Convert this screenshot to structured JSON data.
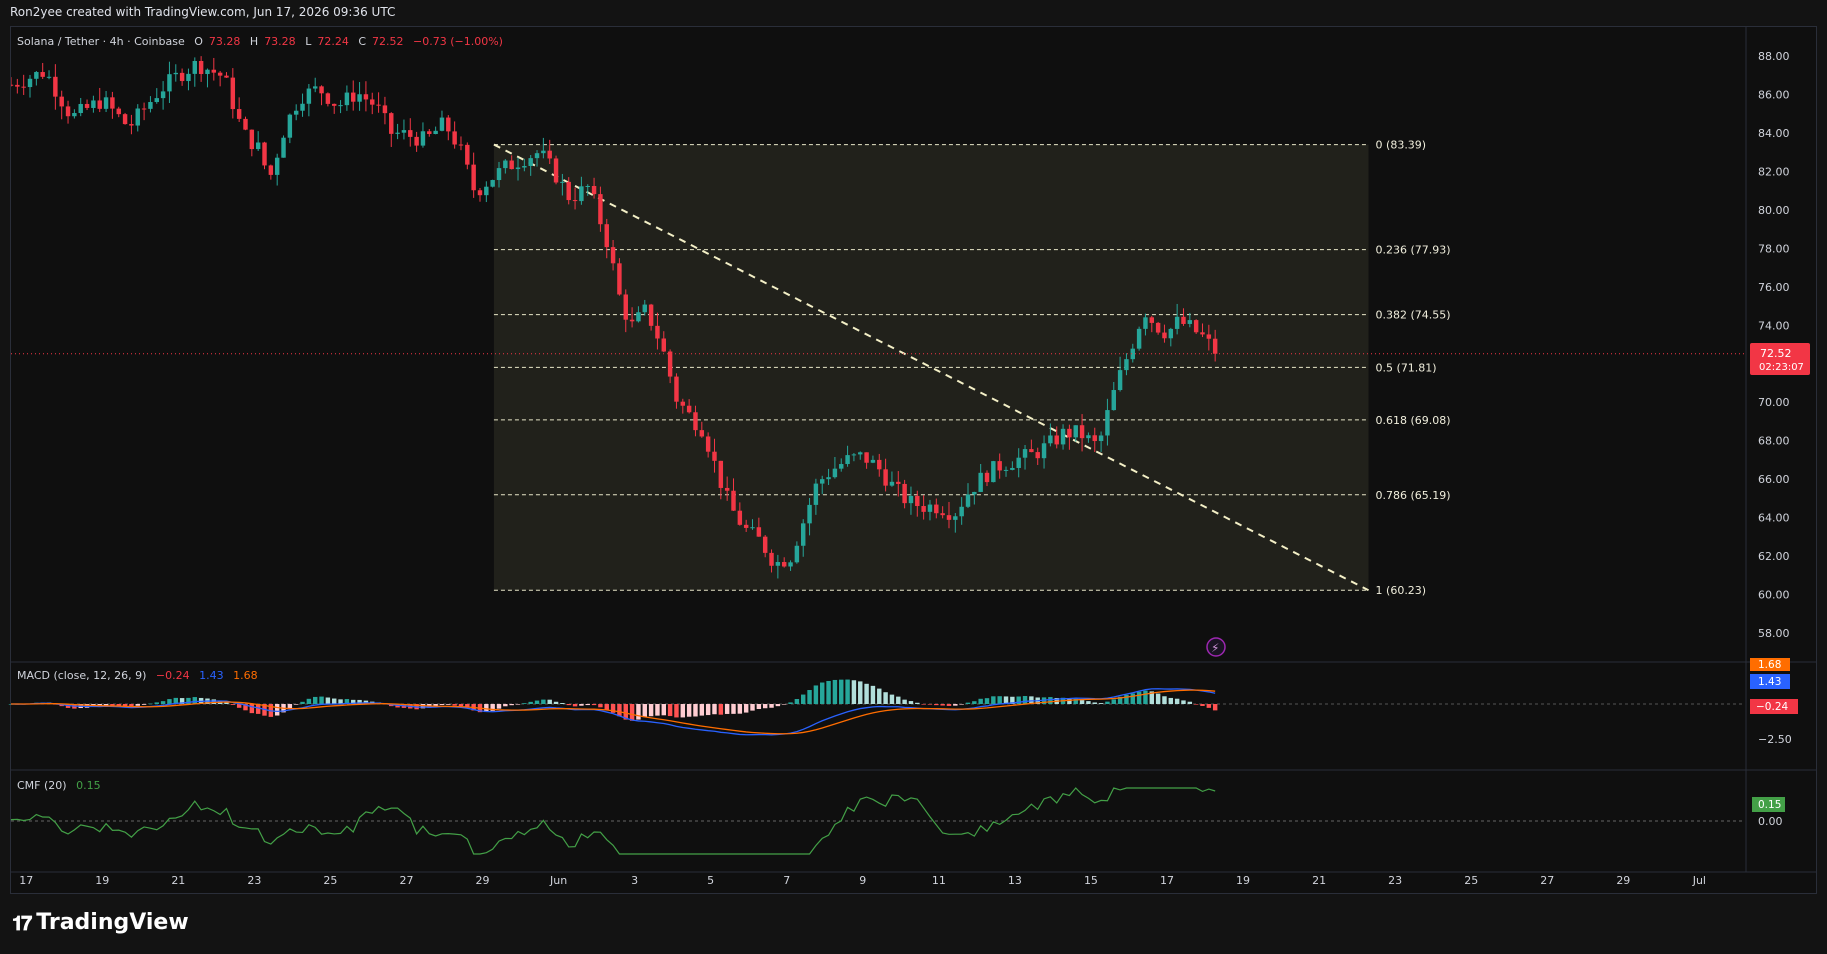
{
  "header": {
    "attribution": "Ron2yee created with TradingView.com, Jun 17, 2026 09:36 UTC"
  },
  "legend": {
    "symbol": "Solana / Tether · 4h · Coinbase",
    "o_label": "O",
    "o_val": "73.28",
    "h_label": "H",
    "h_val": "73.28",
    "l_label": "L",
    "l_val": "72.24",
    "c_label": "C",
    "c_val": "72.52",
    "change": "−0.73 (−1.00%)"
  },
  "macd_legend": {
    "name": "MACD (close, 12, 26, 9)",
    "v1": "−0.24",
    "v2": "1.43",
    "v3": "1.68"
  },
  "cmf_legend": {
    "name": "CMF (20)",
    "v1": "0.15"
  },
  "price_badge": {
    "price": "72.52",
    "countdown": "02:23:07"
  },
  "macd_badges": [
    "1.68",
    "1.43",
    "−0.24"
  ],
  "macd_axis": [
    "−2.50"
  ],
  "cmf_badge": "0.15",
  "cmf_axis": [
    "0.00"
  ],
  "footer": {
    "brand": "TradingView"
  },
  "colors": {
    "up": "#26a69a",
    "down": "#f23645",
    "macd": "#2962ff",
    "signal": "#ff6d00",
    "cmf": "#43a047",
    "fib": "#e8e6c8"
  },
  "chart_data": [
    {
      "type": "candlestick",
      "title": "Solana / Tether · 4h · Coinbase",
      "y_ticks": [
        58,
        60,
        62,
        64,
        66,
        68,
        70,
        72,
        74,
        76,
        78,
        80,
        82,
        84,
        86,
        88
      ],
      "y_tick_labels": [
        "58.00",
        "60.00",
        "62.00",
        "64.00",
        "66.00",
        "68.00",
        "70.00",
        "72.00",
        "74.00",
        "76.00",
        "78.00",
        "80.00",
        "82.00",
        "84.00",
        "86.00",
        "88.00"
      ],
      "ylim": [
        56.5,
        89.5
      ],
      "x_tick_labels": [
        "17",
        "19",
        "21",
        "23",
        "25",
        "27",
        "29",
        "Jun",
        "3",
        "5",
        "7",
        "9",
        "11",
        "13",
        "15",
        "17",
        "19",
        "21",
        "23",
        "25",
        "27",
        "29",
        "Jul"
      ],
      "x_tick_days": [
        -14,
        -12,
        -10,
        -8,
        -6,
        -4,
        -2,
        0,
        2,
        4,
        6,
        8,
        10,
        12,
        14,
        16,
        18,
        20,
        22,
        24,
        26,
        28,
        30
      ],
      "xlim_days": [
        -14.4,
        31.2
      ],
      "last_price": 72.52,
      "fib_levels": [
        {
          "ratio": "0",
          "label": "0 (83.39)",
          "value": 83.39
        },
        {
          "ratio": "0.236",
          "label": "0.236 (77.93)",
          "value": 77.93
        },
        {
          "ratio": "0.382",
          "label": "0.382 (74.55)",
          "value": 74.55
        },
        {
          "ratio": "0.5",
          "label": "0.5 (71.81)",
          "value": 71.81
        },
        {
          "ratio": "0.618",
          "label": "0.618 (69.08)",
          "value": 69.08
        },
        {
          "ratio": "0.786",
          "label": "0.786 (65.19)",
          "value": 65.19
        },
        {
          "ratio": "1",
          "label": "1 (60.23)",
          "value": 60.23
        }
      ],
      "fib_range_days": [
        -1.7,
        21.3
      ],
      "fib_trend_line": {
        "from": {
          "day": -1.7,
          "price": 83.39
        },
        "to": {
          "day": 21.3,
          "price": 60.23
        }
      },
      "waypoints": [
        [
          -14.4,
          86.5
        ],
        [
          -13.5,
          87.2
        ],
        [
          -12.8,
          84.8
        ],
        [
          -12.0,
          85.7
        ],
        [
          -11.3,
          84.3
        ],
        [
          -10.5,
          86.2
        ],
        [
          -10.0,
          87.0
        ],
        [
          -9.5,
          87.6
        ],
        [
          -8.8,
          86.9
        ],
        [
          -8.3,
          84.0
        ],
        [
          -7.9,
          83.2
        ],
        [
          -7.6,
          81.6
        ],
        [
          -7.2,
          84.3
        ],
        [
          -6.8,
          85.9
        ],
        [
          -6.3,
          86.3
        ],
        [
          -5.8,
          85.4
        ],
        [
          -5.3,
          86.1
        ],
        [
          -4.8,
          85.4
        ],
        [
          -4.4,
          84.0
        ],
        [
          -4.0,
          83.9
        ],
        [
          -3.5,
          83.6
        ],
        [
          -3.0,
          84.5
        ],
        [
          -2.6,
          83.2
        ],
        [
          -2.2,
          80.9
        ],
        [
          -1.8,
          81.6
        ],
        [
          -1.4,
          82.2
        ],
        [
          -0.9,
          82.7
        ],
        [
          -0.5,
          83.0
        ],
        [
          -0.1,
          81.9
        ],
        [
          0.3,
          80.6
        ],
        [
          0.8,
          81.2
        ],
        [
          1.3,
          78.2
        ],
        [
          1.6,
          75.5
        ],
        [
          1.9,
          73.9
        ],
        [
          2.3,
          74.8
        ],
        [
          2.7,
          73.0
        ],
        [
          3.1,
          70.2
        ],
        [
          3.4,
          69.4
        ],
        [
          3.8,
          68.6
        ],
        [
          4.2,
          66.2
        ],
        [
          4.5,
          64.6
        ],
        [
          4.9,
          63.4
        ],
        [
          5.3,
          62.8
        ],
        [
          5.7,
          61.6
        ],
        [
          6.1,
          62.0
        ],
        [
          6.4,
          63.6
        ],
        [
          6.8,
          65.8
        ],
        [
          7.2,
          66.5
        ],
        [
          7.6,
          67.0
        ],
        [
          8.0,
          67.2
        ],
        [
          8.4,
          66.6
        ],
        [
          8.8,
          65.6
        ],
        [
          9.2,
          64.8
        ],
        [
          9.6,
          64.6
        ],
        [
          10.0,
          64.6
        ],
        [
          10.4,
          64.2
        ],
        [
          10.8,
          65.4
        ],
        [
          11.2,
          66.2
        ],
        [
          11.6,
          66.7
        ],
        [
          12.0,
          67.0
        ],
        [
          12.5,
          67.3
        ],
        [
          12.9,
          67.8
        ],
        [
          13.3,
          68.4
        ],
        [
          13.7,
          68.4
        ],
        [
          14.1,
          67.8
        ],
        [
          14.3,
          68.3
        ],
        [
          14.5,
          69.9
        ],
        [
          14.8,
          71.6
        ],
        [
          15.1,
          73.1
        ],
        [
          15.4,
          74.8
        ],
        [
          15.7,
          74.0
        ],
        [
          16.0,
          73.6
        ],
        [
          16.3,
          74.2
        ],
        [
          16.6,
          73.9
        ],
        [
          17.0,
          73.3
        ],
        [
          17.3,
          72.52
        ]
      ]
    }
  ]
}
